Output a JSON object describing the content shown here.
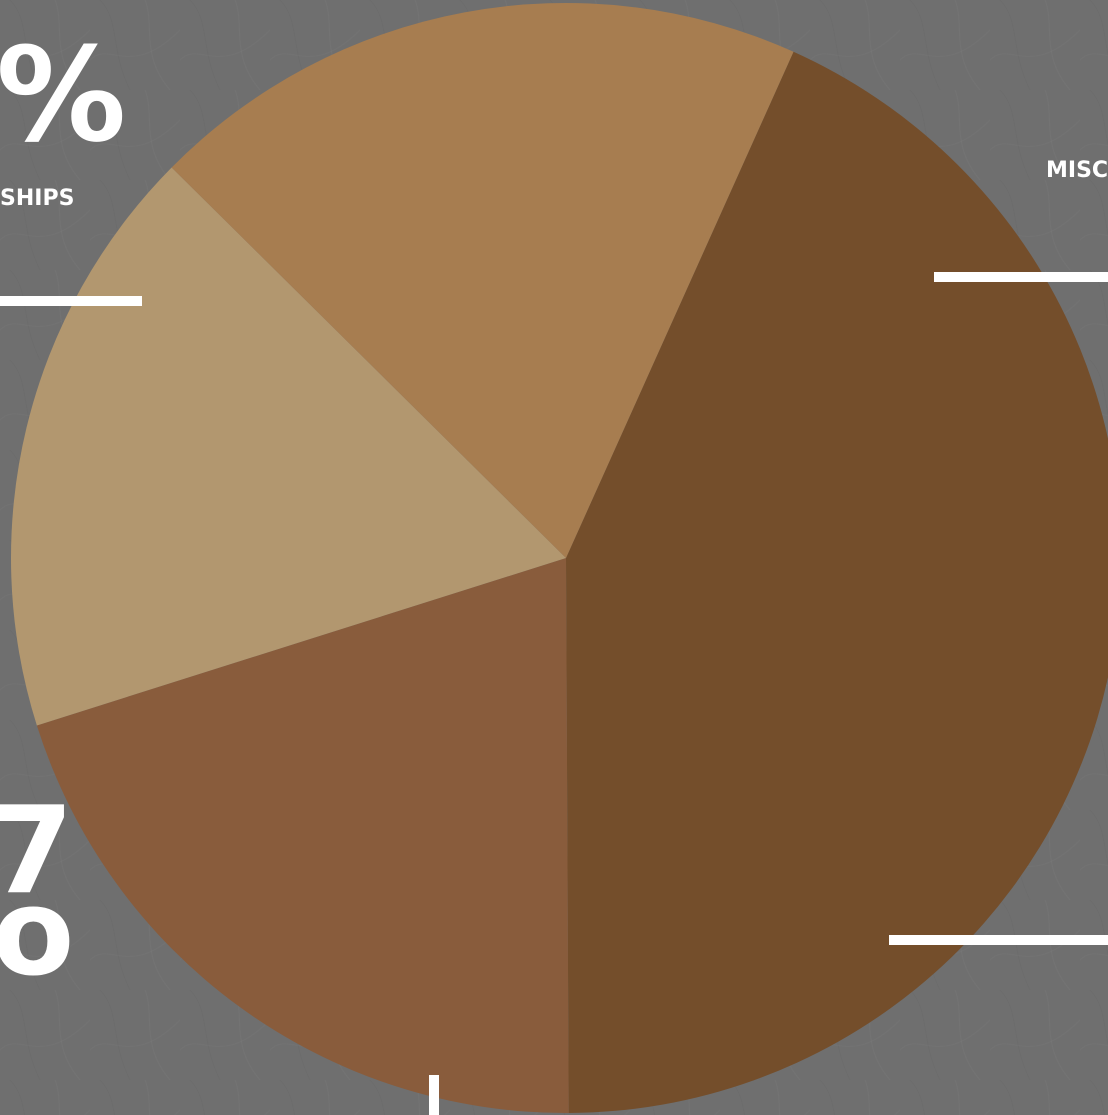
{
  "chart_data": {
    "type": "pie",
    "slices": [
      {
        "id": "left",
        "value": 43.2,
        "color": "#744e2b"
      },
      {
        "id": "top-right",
        "value": 20.2,
        "color": "#895c3c"
      },
      {
        "id": "bottom-right",
        "value": 17.3,
        "color": "#b2976f"
      },
      {
        "id": "bottom",
        "value": 19.3,
        "color": "#a77d50"
      }
    ],
    "labels": {
      "left_percent_glyph": "%",
      "left_caption_fragment": "SHIPS",
      "right_caption_fragment": "MISC",
      "lower_left_fragment_a": "7",
      "lower_left_fragment_b": "o"
    }
  },
  "background_color": "#6f6f6f",
  "line_color": "#ffffff"
}
